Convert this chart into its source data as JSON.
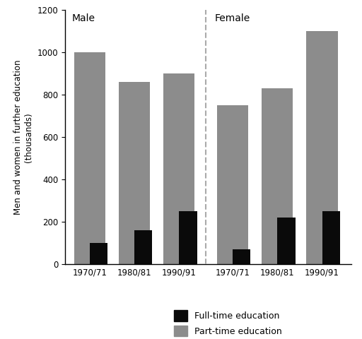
{
  "periods": [
    "1970/71",
    "1980/81",
    "1990/91"
  ],
  "male_fulltime": [
    100,
    160,
    250
  ],
  "male_parttime": [
    1000,
    860,
    900
  ],
  "female_fulltime": [
    70,
    220,
    250
  ],
  "female_parttime": [
    750,
    830,
    1100
  ],
  "fulltime_color": "#0a0a0a",
  "parttime_color": "#8c8c8c",
  "ylabel_line1": "Men and women in further education",
  "ylabel_line2": "(thousands)",
  "ylim": [
    0,
    1200
  ],
  "yticks": [
    0,
    200,
    400,
    600,
    800,
    1000,
    1200
  ],
  "male_label": "Male",
  "female_label": "Female",
  "legend_fulltime": "Full-time education",
  "legend_parttime": "Part-time education",
  "background_color": "#ffffff"
}
